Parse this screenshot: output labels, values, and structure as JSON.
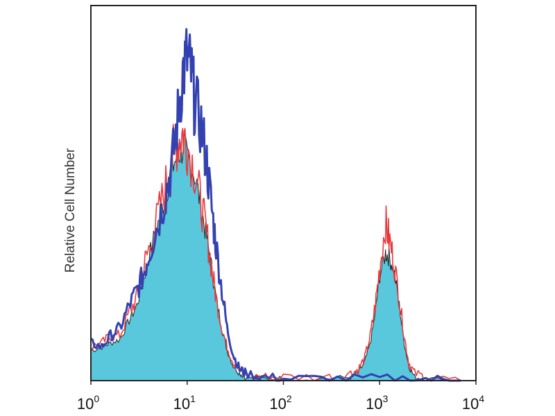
{
  "chart_data": {
    "type": "area",
    "title": "",
    "xlabel": "",
    "ylabel": "Relative Cell Number",
    "x_scale": "log",
    "xlim": [
      1,
      10000
    ],
    "ylim": [
      0,
      100
    ],
    "grid": false,
    "x_ticks": [
      {
        "base": "10",
        "exp": "0",
        "value": 1
      },
      {
        "base": "10",
        "exp": "1",
        "value": 10
      },
      {
        "base": "10",
        "exp": "2",
        "value": 100
      },
      {
        "base": "10",
        "exp": "3",
        "value": 1000
      },
      {
        "base": "10",
        "exp": "4",
        "value": 10000
      }
    ],
    "colors": {
      "filled": "#5ac8dc",
      "filled_outline": "#222222",
      "red": "#e8383c",
      "blue": "#3342b0",
      "frame": "#222222"
    },
    "series": [
      {
        "style": "filled",
        "color": "#5ac8dc",
        "points": [
          [
            1,
            8
          ],
          [
            1.3,
            9
          ],
          [
            1.6,
            10
          ],
          [
            2,
            11
          ],
          [
            2.5,
            16
          ],
          [
            3,
            20
          ],
          [
            3.5,
            27
          ],
          [
            4,
            33
          ],
          [
            5,
            42
          ],
          [
            6,
            50
          ],
          [
            7,
            57
          ],
          [
            8,
            60
          ],
          [
            9,
            62
          ],
          [
            10,
            60
          ],
          [
            12,
            55
          ],
          [
            14,
            46
          ],
          [
            16,
            38
          ],
          [
            18,
            30
          ],
          [
            20,
            22
          ],
          [
            23,
            14
          ],
          [
            26,
            8
          ],
          [
            30,
            4
          ],
          [
            35,
            2
          ],
          [
            40,
            1
          ],
          [
            60,
            0.5
          ],
          [
            100,
            0.5
          ],
          [
            300,
            0.5
          ],
          [
            500,
            1
          ],
          [
            600,
            2
          ],
          [
            700,
            5
          ],
          [
            800,
            10
          ],
          [
            900,
            18
          ],
          [
            1000,
            28
          ],
          [
            1150,
            34
          ],
          [
            1250,
            33
          ],
          [
            1400,
            30
          ],
          [
            1600,
            20
          ],
          [
            1800,
            10
          ],
          [
            2000,
            4
          ],
          [
            2300,
            1
          ],
          [
            3000,
            0.5
          ],
          [
            7000,
            0
          ]
        ]
      },
      {
        "style": "line",
        "color": "#e8383c",
        "points": [
          [
            1,
            9
          ],
          [
            1.3,
            10
          ],
          [
            1.6,
            12
          ],
          [
            2,
            12
          ],
          [
            2.5,
            18
          ],
          [
            3,
            22
          ],
          [
            3.5,
            30
          ],
          [
            4,
            35
          ],
          [
            5,
            44
          ],
          [
            6,
            52
          ],
          [
            7,
            60
          ],
          [
            8,
            64
          ],
          [
            9,
            66
          ],
          [
            10,
            63
          ],
          [
            12,
            56
          ],
          [
            14,
            47
          ],
          [
            16,
            39
          ],
          [
            18,
            30
          ],
          [
            20,
            22
          ],
          [
            23,
            14
          ],
          [
            26,
            9
          ],
          [
            30,
            5
          ],
          [
            35,
            3
          ],
          [
            40,
            2
          ],
          [
            60,
            1
          ],
          [
            100,
            1
          ],
          [
            300,
            1
          ],
          [
            500,
            2
          ],
          [
            600,
            3
          ],
          [
            700,
            6
          ],
          [
            800,
            12
          ],
          [
            900,
            20
          ],
          [
            1000,
            30
          ],
          [
            1150,
            42
          ],
          [
            1250,
            38
          ],
          [
            1400,
            32
          ],
          [
            1600,
            22
          ],
          [
            1800,
            12
          ],
          [
            2000,
            5
          ],
          [
            2300,
            2
          ],
          [
            3000,
            1
          ],
          [
            7000,
            0
          ]
        ]
      },
      {
        "style": "line",
        "color": "#3342b0",
        "points": [
          [
            1,
            10
          ],
          [
            1.3,
            9
          ],
          [
            1.6,
            12
          ],
          [
            2,
            14
          ],
          [
            2.5,
            20
          ],
          [
            3,
            24
          ],
          [
            3.5,
            28
          ],
          [
            4,
            34
          ],
          [
            5,
            42
          ],
          [
            6,
            50
          ],
          [
            7,
            58
          ],
          [
            8,
            70
          ],
          [
            9,
            82
          ],
          [
            10,
            86
          ],
          [
            11,
            82
          ],
          [
            12,
            74
          ],
          [
            14,
            68
          ],
          [
            16,
            58
          ],
          [
            18,
            46
          ],
          [
            20,
            36
          ],
          [
            23,
            24
          ],
          [
            26,
            14
          ],
          [
            30,
            7
          ],
          [
            35,
            3
          ],
          [
            40,
            2
          ],
          [
            60,
            1
          ],
          [
            100,
            0.5
          ],
          [
            300,
            0.5
          ],
          [
            1000,
            0.5
          ],
          [
            3000,
            0.5
          ],
          [
            7000,
            0
          ]
        ]
      }
    ]
  }
}
